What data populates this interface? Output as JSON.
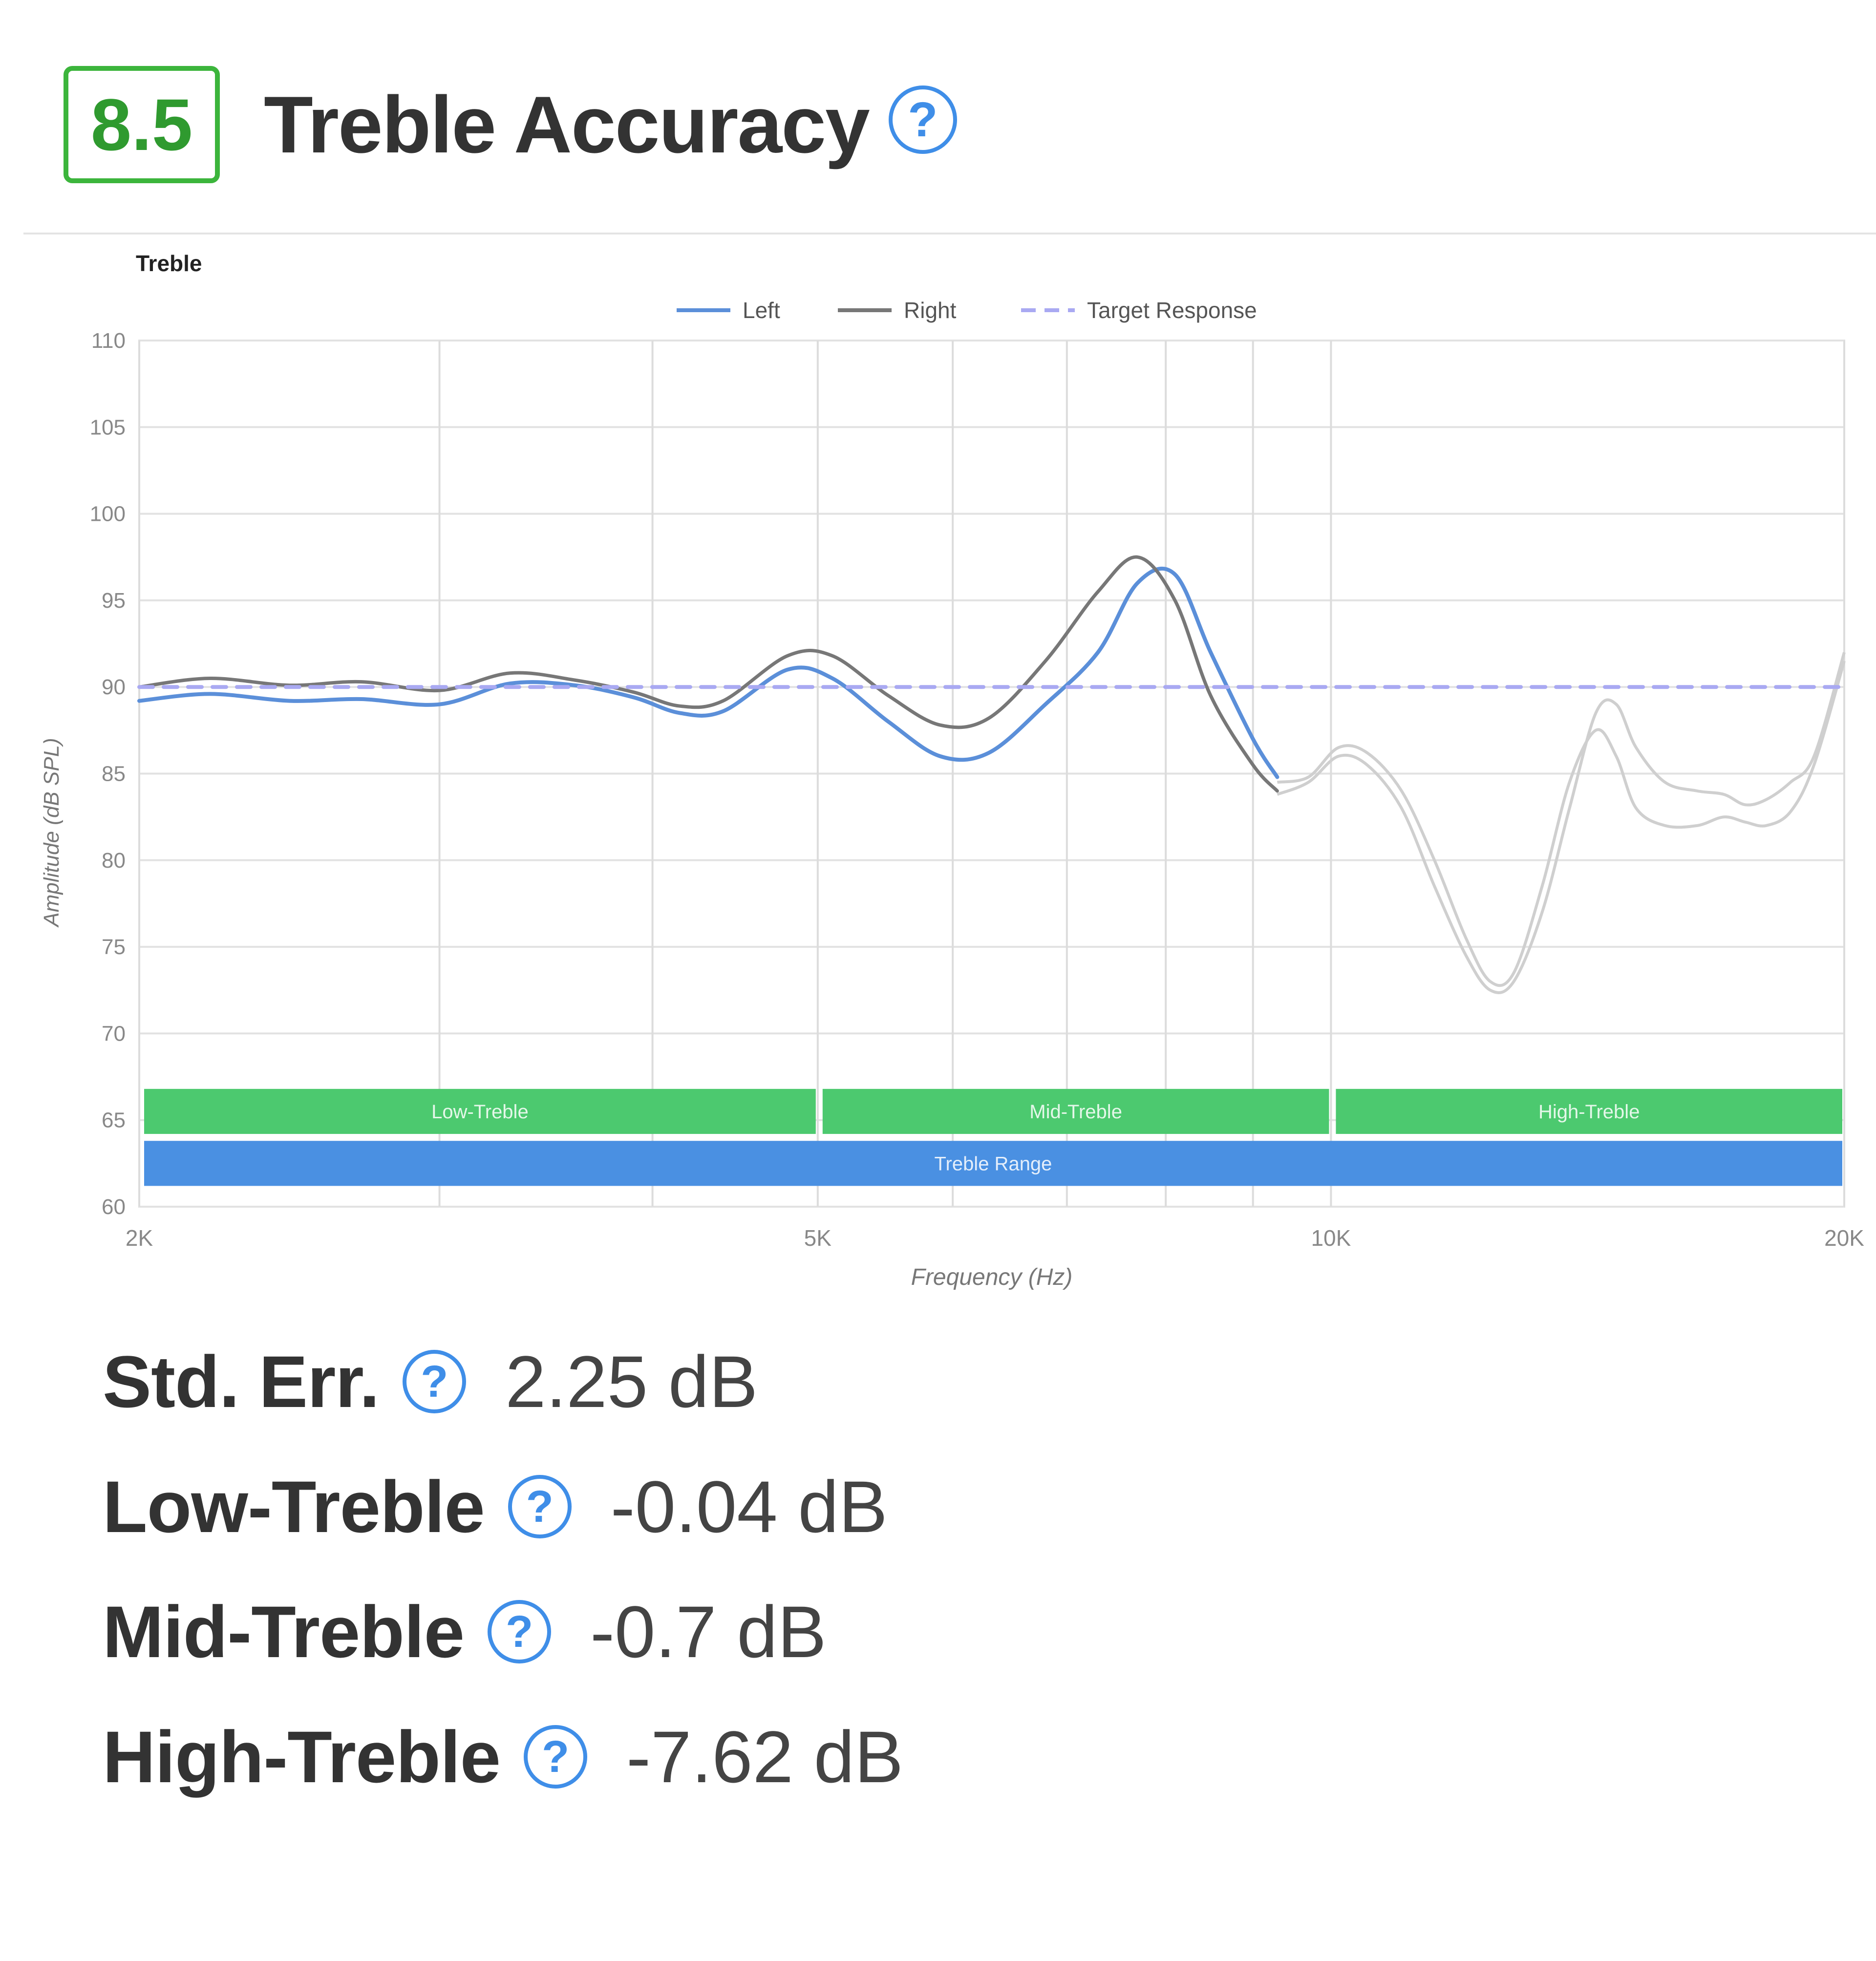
{
  "header": {
    "score": "8.5",
    "title": "Treble Accuracy",
    "help_glyph": "?"
  },
  "colors": {
    "score_border": "#3cb53c",
    "score_text": "#2f9a2f",
    "help_icon": "#3f8ee8",
    "left_series": "#5b8fd9",
    "right_series": "#777777",
    "target_series": "#a9a9f2",
    "band_green": "#4cc96f",
    "band_blue": "#4a90e2"
  },
  "chart_data": {
    "type": "line",
    "title": "Treble",
    "xlabel": "Frequency (Hz)",
    "ylabel": "Amplitude (dB SPL)",
    "x_scale": "log",
    "xlim": [
      2000,
      20000
    ],
    "ylim": [
      60,
      110
    ],
    "x_ticks": [
      {
        "value": 2000,
        "label": "2K"
      },
      {
        "value": 5000,
        "label": "5K"
      },
      {
        "value": 10000,
        "label": "10K"
      },
      {
        "value": 20000,
        "label": "20K"
      }
    ],
    "x_gridlines": [
      2000,
      3000,
      4000,
      5000,
      6000,
      7000,
      8000,
      9000,
      10000,
      20000
    ],
    "y_ticks": [
      60,
      65,
      70,
      75,
      80,
      85,
      90,
      95,
      100,
      105,
      110
    ],
    "grid": true,
    "legend": {
      "position": "top-center",
      "entries": [
        "Left",
        "Right",
        "Target Response"
      ]
    },
    "series": [
      {
        "name": "Left",
        "style": "solid",
        "x": [
          2000,
          2200,
          2450,
          2700,
          3000,
          3300,
          3600,
          3900,
          4150,
          4400,
          4800,
          5100,
          5500,
          5900,
          6300,
          6800,
          7300,
          7700,
          8100,
          8500,
          9000,
          9300
        ],
        "y": [
          89.2,
          89.6,
          89.2,
          89.3,
          89.0,
          90.2,
          90.1,
          89.4,
          88.5,
          88.6,
          91.0,
          90.5,
          88.0,
          86.0,
          86.2,
          89.0,
          92.0,
          96.0,
          96.5,
          92.0,
          87.0,
          84.8
        ]
      },
      {
        "name": "Right",
        "style": "solid",
        "x": [
          2000,
          2200,
          2450,
          2700,
          3000,
          3300,
          3600,
          3900,
          4150,
          4400,
          4800,
          5100,
          5500,
          5900,
          6300,
          6800,
          7300,
          7700,
          8100,
          8500,
          9000,
          9300
        ],
        "y": [
          90.0,
          90.5,
          90.1,
          90.3,
          89.8,
          90.8,
          90.4,
          89.7,
          88.9,
          89.2,
          91.8,
          91.8,
          89.5,
          87.8,
          88.2,
          91.5,
          95.5,
          97.5,
          95.0,
          89.5,
          85.5,
          84.0
        ]
      },
      {
        "name": "Target Response",
        "style": "dashed",
        "x": [
          2000,
          20000
        ],
        "y": [
          90,
          90
        ]
      }
    ],
    "faded_series": [
      {
        "x": [
          9300,
          9700,
          10100,
          10500,
          11000,
          11500,
          12000,
          12400,
          12800,
          13300,
          13800,
          14300,
          14700,
          15100,
          15700,
          16400,
          17000,
          17500,
          18000,
          18600,
          19200,
          20000
        ],
        "y": [
          84.5,
          84.8,
          86.5,
          86.2,
          84.0,
          80.0,
          75.5,
          73.0,
          73.5,
          78.5,
          84.5,
          87.5,
          86.0,
          83.0,
          82.0,
          82.0,
          82.5,
          82.2,
          82.0,
          82.8,
          85.5,
          91.5
        ]
      },
      {
        "x": [
          9300,
          9700,
          10100,
          10500,
          11000,
          11500,
          12000,
          12400,
          12800,
          13300,
          13800,
          14300,
          14700,
          15100,
          15700,
          16400,
          17000,
          17500,
          18000,
          18600,
          19200,
          20000
        ],
        "y": [
          83.8,
          84.5,
          86.0,
          85.5,
          83.0,
          78.5,
          74.5,
          72.5,
          73.0,
          77.0,
          83.0,
          88.5,
          89.0,
          86.5,
          84.5,
          84.0,
          83.8,
          83.2,
          83.5,
          84.5,
          86.0,
          92.0
        ]
      }
    ],
    "bands": [
      {
        "label": "Low-Treble",
        "from": 2000,
        "to": 5000,
        "row": 1,
        "color": "#4cc96f"
      },
      {
        "label": "Mid-Treble",
        "from": 5000,
        "to": 10000,
        "row": 1,
        "color": "#4cc96f"
      },
      {
        "label": "High-Treble",
        "from": 10000,
        "to": 20000,
        "row": 1,
        "color": "#4cc96f"
      },
      {
        "label": "Treble Range",
        "from": 2000,
        "to": 20000,
        "row": 2,
        "color": "#4a90e2"
      }
    ]
  },
  "stats": [
    {
      "label": "Std. Err.",
      "value": "2.25 dB"
    },
    {
      "label": "Low-Treble",
      "value": "-0.04 dB"
    },
    {
      "label": "Mid-Treble",
      "value": "-0.7 dB"
    },
    {
      "label": "High-Treble",
      "value": "-7.62 dB"
    }
  ]
}
